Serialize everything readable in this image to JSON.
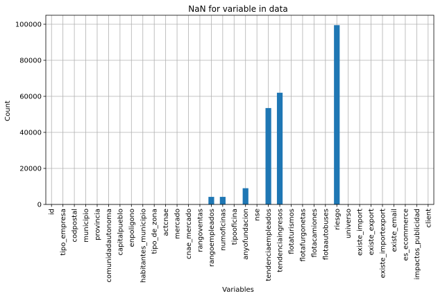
{
  "chart_data": {
    "type": "bar",
    "title": "NaN for variable in data",
    "xlabel": "Variables",
    "ylabel": "Count",
    "ylim": [
      0,
      105000
    ],
    "yticks": [
      0,
      20000,
      40000,
      60000,
      80000,
      100000
    ],
    "grid": true,
    "categories": [
      "id",
      "tipo_empresa",
      "codpostal",
      "municipio",
      "provincia",
      "comunidadautonoma",
      "capitalpueblo",
      "enpoligono",
      "habitantes_municipio",
      "tipo_de_zona",
      "actcnae",
      "mercado",
      "cnae_mercado",
      "rangoventas",
      "rangoempleados",
      "numoficinas",
      "tipooficina",
      "anyofundacion",
      "nse",
      "tendenciaempleados",
      "tendenciaingresos",
      "flotaturismos",
      "flotafurgonetas",
      "flotacamiones",
      "flotaautobuses",
      "riesgo",
      "universo",
      "existe_import",
      "existe_export",
      "existe_importexport",
      "existe_email",
      "es_ecommerce",
      "impactos_publicidad",
      "client"
    ],
    "values": [
      0,
      0,
      0,
      0,
      0,
      0,
      0,
      0,
      0,
      0,
      0,
      0,
      0,
      0,
      4200,
      4200,
      0,
      9000,
      0,
      53500,
      62000,
      0,
      0,
      0,
      0,
      99500,
      0,
      0,
      0,
      0,
      0,
      0,
      0,
      0
    ],
    "colors": {
      "bar": "#1f77b4",
      "grid": "#b0b0b0",
      "axis": "#000000"
    }
  }
}
